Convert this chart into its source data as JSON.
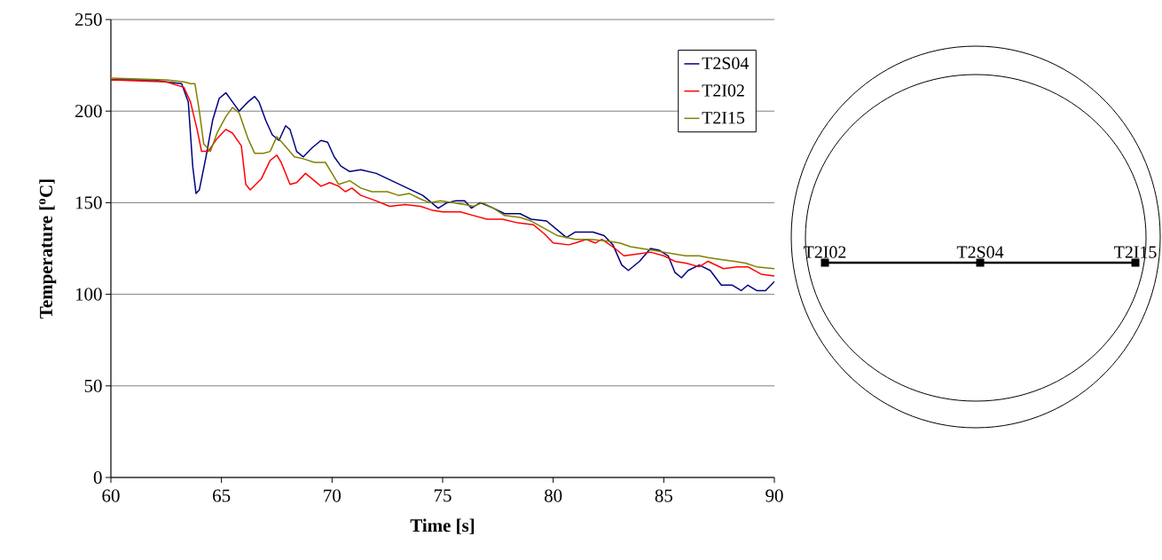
{
  "chart_data": [
    {
      "type": "line",
      "xlabel": "Time [s]",
      "ylabel": "Temperature [$^{o}$C]",
      "xlim": [
        60,
        90
      ],
      "ylim": [
        0,
        250
      ],
      "xticks": [
        60,
        65,
        70,
        75,
        80,
        85,
        90
      ],
      "yticks": [
        0,
        50,
        100,
        150,
        200,
        250
      ],
      "grid": "y",
      "legend": "top right",
      "marker": "none",
      "line_style": "solid",
      "series": [
        {
          "name": "T2S04",
          "color": "#000080",
          "x": [
            60,
            62,
            62.5,
            63.2,
            63.5,
            63.7,
            63.85,
            64,
            64.3,
            64.6,
            64.9,
            65.2,
            65.5,
            65.8,
            66.2,
            66.5,
            66.7,
            67,
            67.3,
            67.6,
            67.9,
            68.1,
            68.4,
            68.7,
            69.1,
            69.5,
            69.8,
            70.1,
            70.4,
            70.8,
            71.3,
            72,
            72.7,
            73.4,
            74.1,
            74.5,
            74.8,
            75.2,
            75.6,
            76,
            76.3,
            76.7,
            77.3,
            77.8,
            78.5,
            79,
            79.7,
            80.2,
            80.6,
            81,
            81.8,
            82.3,
            82.7,
            83.1,
            83.4,
            83.9,
            84.4,
            84.8,
            85.2,
            85.5,
            85.8,
            86.1,
            86.6,
            87.1,
            87.6,
            88.1,
            88.5,
            88.8,
            89.2,
            89.6,
            90
          ],
          "values": [
            217,
            217,
            216,
            215,
            205,
            170,
            155,
            157,
            175,
            195,
            207,
            210,
            205,
            200,
            205,
            208,
            205,
            195,
            187,
            184,
            192,
            190,
            178,
            175,
            180,
            184,
            183,
            175,
            170,
            167,
            168,
            166,
            162,
            158,
            154,
            150,
            147,
            150,
            151,
            151,
            147,
            150,
            147,
            144,
            144,
            141,
            140,
            135,
            131,
            134,
            134,
            132,
            127,
            116,
            113,
            118,
            125,
            124,
            121,
            112,
            109,
            113,
            116,
            113,
            105,
            105,
            102,
            105,
            102,
            102,
            107
          ]
        },
        {
          "name": "T2I02",
          "color": "#ff0000",
          "x": [
            60,
            62.5,
            63.3,
            63.6,
            63.9,
            64.1,
            64.4,
            64.8,
            65.2,
            65.5,
            65.9,
            66.1,
            66.3,
            66.8,
            67.2,
            67.5,
            67.7,
            68.1,
            68.4,
            68.8,
            69.2,
            69.5,
            69.9,
            70.3,
            70.6,
            70.9,
            71.3,
            72,
            72.6,
            73.3,
            74,
            74.5,
            75,
            75.8,
            76.4,
            77,
            77.7,
            78.4,
            79.1,
            79.6,
            80,
            80.7,
            81,
            81.5,
            81.9,
            82.2,
            82.8,
            83.2,
            83.8,
            84.4,
            85,
            85.5,
            86,
            86.6,
            87,
            87.7,
            88.3,
            88.8,
            89.4,
            90
          ],
          "values": [
            217,
            216,
            213,
            205,
            190,
            178,
            178,
            185,
            190,
            188,
            181,
            160,
            157,
            163,
            173,
            176,
            172,
            160,
            161,
            166,
            162,
            159,
            161,
            159,
            156,
            158,
            154,
            151,
            148,
            149,
            148,
            146,
            145,
            145,
            143,
            141,
            141,
            139,
            138,
            133,
            128,
            127,
            128,
            130,
            128,
            130,
            125,
            121,
            122,
            123,
            121,
            118,
            117,
            115,
            118,
            114,
            115,
            115,
            111,
            110
          ]
        },
        {
          "name": "T2I15",
          "color": "#808000",
          "x": [
            60,
            62.5,
            63.3,
            63.6,
            63.8,
            64,
            64.2,
            64.5,
            64.8,
            65.2,
            65.5,
            65.8,
            66.2,
            66.5,
            66.9,
            67.2,
            67.5,
            67.8,
            68.3,
            68.7,
            69.2,
            69.7,
            70,
            70.3,
            70.8,
            71.3,
            71.8,
            72.5,
            73,
            73.5,
            74,
            74.4,
            74.9,
            75.5,
            76,
            76.4,
            76.8,
            77.3,
            77.8,
            78.5,
            79,
            79.6,
            80.2,
            81,
            81.7,
            82.5,
            83,
            83.5,
            84,
            84.5,
            85,
            85.5,
            86,
            86.6,
            87,
            87.6,
            88.2,
            88.7,
            89.2,
            90
          ],
          "values": [
            218,
            217,
            216,
            215,
            215,
            200,
            182,
            178,
            188,
            197,
            202,
            199,
            185,
            177,
            177,
            178,
            186,
            182,
            175,
            174,
            172,
            172,
            166,
            160,
            162,
            158,
            156,
            156,
            154,
            155,
            152,
            150,
            151,
            150,
            149,
            148,
            150,
            147,
            143,
            142,
            140,
            136,
            132,
            130,
            130,
            129,
            128,
            126,
            125,
            124,
            123,
            122,
            121,
            121,
            120,
            119,
            118,
            117,
            115,
            114
          ]
        }
      ]
    },
    {
      "type": "other",
      "annotations": [
        "T2I02",
        "T2S04",
        "T2I15"
      ]
    }
  ]
}
